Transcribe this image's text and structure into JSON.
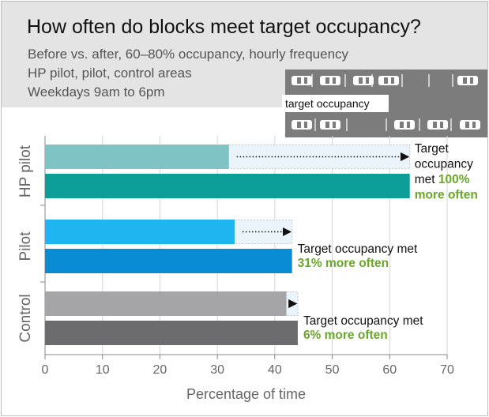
{
  "chart_data": {
    "type": "bar",
    "title": "How often do blocks meet target occupancy?",
    "subtitle_lines": [
      "Before vs. after, 60–80% occupancy, hourly frequency",
      "HP pilot, pilot, control areas",
      "Weekdays 9am to 6pm"
    ],
    "inset_label": "target occupancy",
    "xlabel": "Percentage of time",
    "xlim": [
      0,
      70
    ],
    "xticks": [
      "0",
      "10",
      "20",
      "30",
      "40",
      "50",
      "60",
      "70"
    ],
    "groups": [
      {
        "name": "HP pilot",
        "before": 32,
        "after": 63.5,
        "before_color": "#80c3c4",
        "after_color": "#0e9e9a",
        "annotation_lines": [
          {
            "text": "Target",
            "bold": false
          },
          {
            "text": "occupancy",
            "bold": false
          },
          {
            "text": "met ",
            "bold": false,
            "tail": "100%"
          },
          {
            "text": "more often",
            "bold": true
          }
        ]
      },
      {
        "name": "Pilot",
        "before": 33,
        "after": 43,
        "before_color": "#1fb5f0",
        "after_color": "#0a8cd4",
        "annotation_lines": [
          {
            "text": "Target occupancy met",
            "bold": false
          },
          {
            "text": "31% more often",
            "bold": true
          }
        ]
      },
      {
        "name": "Control",
        "before": 42,
        "after": 44,
        "before_color": "#a5a5a7",
        "after_color": "#6c6c6e",
        "annotation_lines": [
          {
            "text": "Target occupancy met",
            "bold": false
          },
          {
            "text": "6% more often",
            "bold": true
          }
        ]
      }
    ],
    "highlight_color": "#6aa52c",
    "grid": true
  }
}
